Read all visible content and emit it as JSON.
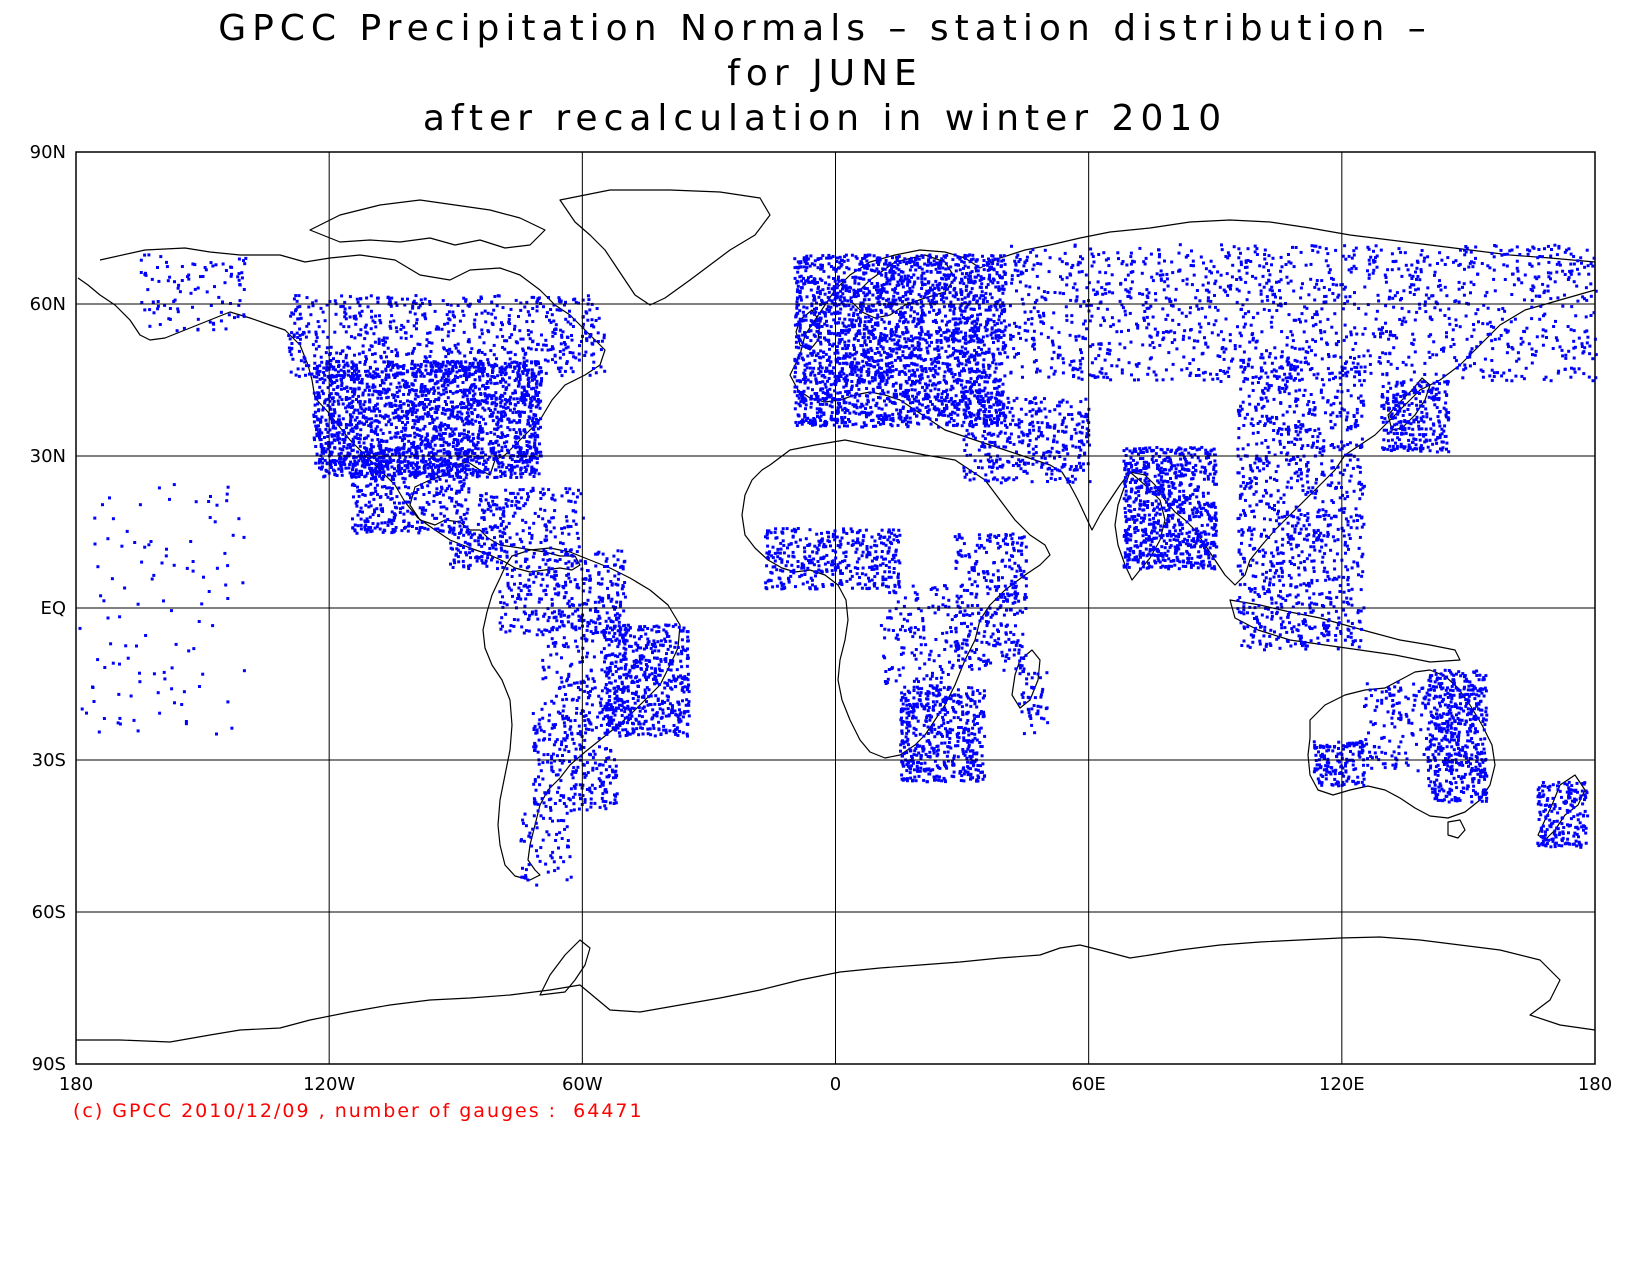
{
  "title": {
    "lines": [
      "GPCC Precipitation Normals – station distribution –",
      "for JUNE",
      "after recalculation in winter 2010"
    ]
  },
  "credit": "(c) GPCC 2010/12/09 , number of gauges :  64471",
  "map": {
    "projection": "equirectangular",
    "lon_range": [
      -180,
      180
    ],
    "lat_range": [
      -90,
      90
    ],
    "lon_ticks": [
      {
        "value": -180,
        "label": "180"
      },
      {
        "value": -120,
        "label": "120W"
      },
      {
        "value": -60,
        "label": "60W"
      },
      {
        "value": 0,
        "label": "0"
      },
      {
        "value": 60,
        "label": "60E"
      },
      {
        "value": 120,
        "label": "120E"
      },
      {
        "value": 180,
        "label": "180"
      }
    ],
    "lat_ticks": [
      {
        "value": 90,
        "label": "90N"
      },
      {
        "value": 60,
        "label": "60N"
      },
      {
        "value": 30,
        "label": "30N"
      },
      {
        "value": 0,
        "label": "EQ"
      },
      {
        "value": -30,
        "label": "30S"
      },
      {
        "value": -60,
        "label": "60S"
      },
      {
        "value": -90,
        "label": "90S"
      }
    ],
    "grid": true,
    "coastline_color": "#000000",
    "station_color": "#0000ff",
    "station_regions": [
      {
        "name": "United States",
        "lon": [
          -124,
          -70
        ],
        "lat": [
          26,
          49
        ],
        "density": 0.9
      },
      {
        "name": "Canada",
        "lon": [
          -130,
          -55
        ],
        "lat": [
          46,
          62
        ],
        "density": 0.3
      },
      {
        "name": "Alaska",
        "lon": [
          -165,
          -140
        ],
        "lat": [
          55,
          70
        ],
        "density": 0.15
      },
      {
        "name": "Mexico",
        "lon": [
          -115,
          -87
        ],
        "lat": [
          15,
          32
        ],
        "density": 0.5
      },
      {
        "name": "Central America",
        "lon": [
          -92,
          -78
        ],
        "lat": [
          8,
          17
        ],
        "density": 0.5
      },
      {
        "name": "Caribbean",
        "lon": [
          -85,
          -60
        ],
        "lat": [
          12,
          24
        ],
        "density": 0.3
      },
      {
        "name": "Northern South America",
        "lon": [
          -80,
          -50
        ],
        "lat": [
          -5,
          12
        ],
        "density": 0.35
      },
      {
        "name": "Brazil East",
        "lon": [
          -55,
          -35
        ],
        "lat": [
          -25,
          -3
        ],
        "density": 0.7
      },
      {
        "name": "Brazil Interior",
        "lon": [
          -70,
          -50
        ],
        "lat": [
          -20,
          0
        ],
        "density": 0.25
      },
      {
        "name": "Southern South America",
        "lon": [
          -72,
          -52
        ],
        "lat": [
          -40,
          -20
        ],
        "density": 0.4
      },
      {
        "name": "Patagonia",
        "lon": [
          -75,
          -63
        ],
        "lat": [
          -55,
          -40
        ],
        "density": 0.2
      },
      {
        "name": "Europe",
        "lon": [
          -10,
          40
        ],
        "lat": [
          36,
          70
        ],
        "density": 0.85
      },
      {
        "name": "Russia",
        "lon": [
          40,
          180
        ],
        "lat": [
          45,
          72
        ],
        "density": 0.2
      },
      {
        "name": "Middle East",
        "lon": [
          30,
          60
        ],
        "lat": [
          25,
          42
        ],
        "density": 0.4
      },
      {
        "name": "India",
        "lon": [
          68,
          90
        ],
        "lat": [
          8,
          32
        ],
        "density": 0.85
      },
      {
        "name": "China",
        "lon": [
          95,
          125
        ],
        "lat": [
          20,
          50
        ],
        "density": 0.3
      },
      {
        "name": "Japan",
        "lon": [
          129,
          145
        ],
        "lat": [
          31,
          45
        ],
        "density": 0.7
      },
      {
        "name": "Southeast Asia",
        "lon": [
          95,
          125
        ],
        "lat": [
          -8,
          20
        ],
        "density": 0.35
      },
      {
        "name": "West Africa",
        "lon": [
          -17,
          15
        ],
        "lat": [
          4,
          16
        ],
        "density": 0.55
      },
      {
        "name": "East Africa",
        "lon": [
          28,
          45
        ],
        "lat": [
          -12,
          15
        ],
        "density": 0.4
      },
      {
        "name": "Southern Africa",
        "lon": [
          15,
          35
        ],
        "lat": [
          -34,
          -15
        ],
        "density": 0.75
      },
      {
        "name": "Central Africa",
        "lon": [
          10,
          30
        ],
        "lat": [
          -15,
          5
        ],
        "density": 0.2
      },
      {
        "name": "Madagascar",
        "lon": [
          43,
          50
        ],
        "lat": [
          -25,
          -12
        ],
        "density": 0.3
      },
      {
        "name": "Australia East",
        "lon": [
          140,
          154
        ],
        "lat": [
          -38,
          -12
        ],
        "density": 0.8
      },
      {
        "name": "Australia Southwest",
        "lon": [
          113,
          125
        ],
        "lat": [
          -35,
          -26
        ],
        "density": 0.8
      },
      {
        "name": "Australia Interior",
        "lon": [
          125,
          140
        ],
        "lat": [
          -32,
          -14
        ],
        "density": 0.25
      },
      {
        "name": "New Zealand",
        "lon": [
          166,
          178
        ],
        "lat": [
          -47,
          -34
        ],
        "density": 0.7
      },
      {
        "name": "Pacific Islands",
        "lon": [
          -180,
          -140
        ],
        "lat": [
          -25,
          25
        ],
        "density": 0.03
      }
    ]
  }
}
